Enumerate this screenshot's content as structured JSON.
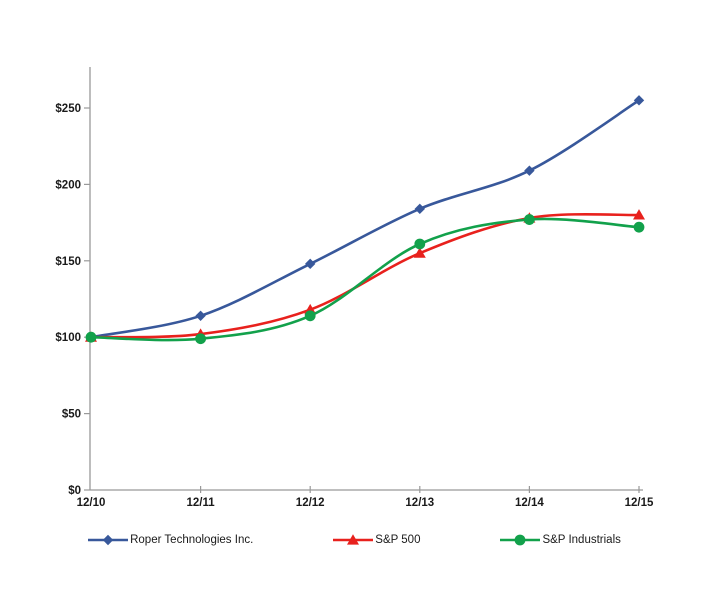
{
  "chart_data": {
    "type": "line",
    "title": "",
    "xlabel": "",
    "ylabel": "",
    "x": [
      "12/10",
      "12/11",
      "12/12",
      "12/13",
      "12/14",
      "12/15"
    ],
    "series": [
      {
        "name": "Roper Technologies Inc.",
        "values": [
          100,
          114,
          148,
          184,
          209,
          255
        ],
        "color": "#38589B",
        "marker": "diamond"
      },
      {
        "name": "S&P 500",
        "values": [
          100,
          102,
          118,
          155,
          178,
          180
        ],
        "color": "#E8211D",
        "marker": "triangle"
      },
      {
        "name": "S&P Industrials",
        "values": [
          100,
          99,
          114,
          161,
          177,
          172
        ],
        "color": "#12A14B",
        "marker": "circle"
      }
    ],
    "y_ticks": [
      {
        "label": "$0",
        "value": 0
      },
      {
        "label": "$50",
        "value": 50
      },
      {
        "label": "$100",
        "value": 100
      },
      {
        "label": "$150",
        "value": 150
      },
      {
        "label": "$200",
        "value": 200
      },
      {
        "label": "$250",
        "value": 250
      }
    ],
    "ylim": [
      0,
      277
    ],
    "grid": false,
    "smoothed": true,
    "legend_position": "bottom",
    "axis_color": "#999999",
    "label_color": "#1a1a1a"
  }
}
